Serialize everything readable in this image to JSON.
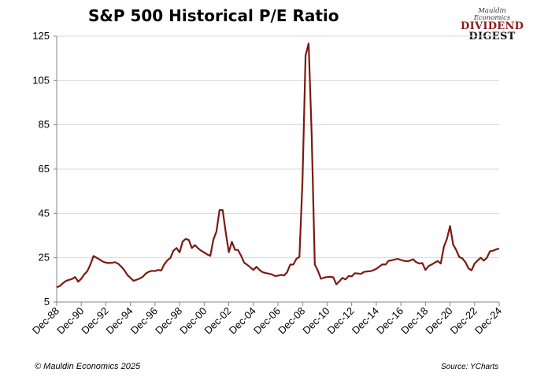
{
  "chart_data": {
    "type": "line",
    "title": "S&P 500 Historical P/E Ratio",
    "xlabel": "",
    "ylabel": "",
    "ylim": [
      5,
      125
    ],
    "y_ticks": [
      5,
      25,
      45,
      65,
      85,
      105,
      125
    ],
    "x_tick_labels": [
      "Dec-88",
      "Dec-90",
      "Dec-92",
      "Dec-94",
      "Dec-96",
      "Dec-98",
      "Dec-00",
      "Dec-02",
      "Dec-04",
      "Dec-06",
      "Dec-08",
      "Dec-10",
      "Dec-12",
      "Dec-14",
      "Dec-16",
      "Dec-18",
      "Dec-20",
      "Dec-22",
      "Dec-24"
    ],
    "grid": "horizontal",
    "line_color": "#7b1a12",
    "series": [
      {
        "points": [
          [
            "1988-12",
            11.7
          ],
          [
            "1989-03",
            12.2
          ],
          [
            "1989-06",
            13.5
          ],
          [
            "1989-09",
            14.5
          ],
          [
            "1989-12",
            15.0
          ],
          [
            "1990-03",
            15.4
          ],
          [
            "1990-06",
            16.3
          ],
          [
            "1990-09",
            14.2
          ],
          [
            "1990-12",
            15.5
          ],
          [
            "1991-03",
            17.5
          ],
          [
            "1991-06",
            19.0
          ],
          [
            "1991-09",
            22.0
          ],
          [
            "1991-12",
            25.8
          ],
          [
            "1992-03",
            25.0
          ],
          [
            "1992-06",
            24.2
          ],
          [
            "1992-09",
            23.3
          ],
          [
            "1992-12",
            22.8
          ],
          [
            "1993-03",
            22.6
          ],
          [
            "1993-06",
            22.7
          ],
          [
            "1993-09",
            23.0
          ],
          [
            "1993-12",
            22.3
          ],
          [
            "1994-03",
            21.0
          ],
          [
            "1994-06",
            19.4
          ],
          [
            "1994-09",
            17.2
          ],
          [
            "1994-12",
            15.9
          ],
          [
            "1995-03",
            14.6
          ],
          [
            "1995-06",
            15.1
          ],
          [
            "1995-09",
            15.6
          ],
          [
            "1995-12",
            16.4
          ],
          [
            "1996-03",
            17.9
          ],
          [
            "1996-06",
            18.7
          ],
          [
            "1996-09",
            19.1
          ],
          [
            "1996-12",
            19.0
          ],
          [
            "1997-03",
            19.5
          ],
          [
            "1997-06",
            19.2
          ],
          [
            "1997-09",
            22.0
          ],
          [
            "1997-12",
            23.8
          ],
          [
            "1998-03",
            24.9
          ],
          [
            "1998-06",
            28.2
          ],
          [
            "1998-09",
            29.4
          ],
          [
            "1998-12",
            27.4
          ],
          [
            "1999-03",
            32.3
          ],
          [
            "1999-06",
            33.5
          ],
          [
            "1999-09",
            33.0
          ],
          [
            "1999-12",
            29.4
          ],
          [
            "2000-03",
            30.7
          ],
          [
            "2000-06",
            29.3
          ],
          [
            "2000-09",
            28.2
          ],
          [
            "2000-12",
            27.4
          ],
          [
            "2001-03",
            26.5
          ],
          [
            "2001-06",
            25.8
          ],
          [
            "2001-09",
            33.2
          ],
          [
            "2001-12",
            36.8
          ],
          [
            "2002-03",
            46.5
          ],
          [
            "2002-06",
            46.5
          ],
          [
            "2002-09",
            36.5
          ],
          [
            "2002-12",
            27.5
          ],
          [
            "2003-03",
            32.2
          ],
          [
            "2003-06",
            28.6
          ],
          [
            "2003-09",
            28.5
          ],
          [
            "2003-12",
            25.9
          ],
          [
            "2004-03",
            22.8
          ],
          [
            "2004-06",
            21.8
          ],
          [
            "2004-09",
            20.7
          ],
          [
            "2004-12",
            19.5
          ],
          [
            "2005-03",
            20.9
          ],
          [
            "2005-06",
            19.5
          ],
          [
            "2005-09",
            18.5
          ],
          [
            "2005-12",
            18.1
          ],
          [
            "2006-03",
            17.8
          ],
          [
            "2006-06",
            17.5
          ],
          [
            "2006-09",
            16.8
          ],
          [
            "2006-12",
            16.9
          ],
          [
            "2007-03",
            17.3
          ],
          [
            "2007-06",
            17.0
          ],
          [
            "2007-09",
            18.5
          ],
          [
            "2007-12",
            21.9
          ],
          [
            "2008-03",
            21.9
          ],
          [
            "2008-06",
            24.5
          ],
          [
            "2008-09",
            25.4
          ],
          [
            "2008-12",
            60.0
          ],
          [
            "2009-03",
            116.3
          ],
          [
            "2009-06",
            121.7
          ],
          [
            "2009-09",
            80.0
          ],
          [
            "2009-12",
            21.9
          ],
          [
            "2010-03",
            19.2
          ],
          [
            "2010-06",
            15.5
          ],
          [
            "2010-09",
            16.0
          ],
          [
            "2010-12",
            16.3
          ],
          [
            "2011-03",
            16.4
          ],
          [
            "2011-06",
            16.2
          ],
          [
            "2011-09",
            13.0
          ],
          [
            "2011-12",
            14.4
          ],
          [
            "2012-03",
            15.9
          ],
          [
            "2012-06",
            15.2
          ],
          [
            "2012-09",
            16.8
          ],
          [
            "2012-12",
            16.6
          ],
          [
            "2013-03",
            18.0
          ],
          [
            "2013-06",
            17.9
          ],
          [
            "2013-09",
            17.7
          ],
          [
            "2013-12",
            18.6
          ],
          [
            "2014-03",
            18.8
          ],
          [
            "2014-06",
            18.9
          ],
          [
            "2014-09",
            19.3
          ],
          [
            "2014-12",
            20.0
          ],
          [
            "2015-03",
            21.0
          ],
          [
            "2015-06",
            22.0
          ],
          [
            "2015-09",
            21.9
          ],
          [
            "2015-12",
            23.6
          ],
          [
            "2016-03",
            23.8
          ],
          [
            "2016-06",
            24.2
          ],
          [
            "2016-09",
            24.5
          ],
          [
            "2016-12",
            24.0
          ],
          [
            "2017-03",
            23.6
          ],
          [
            "2017-06",
            23.4
          ],
          [
            "2017-09",
            23.7
          ],
          [
            "2017-12",
            24.3
          ],
          [
            "2018-03",
            23.0
          ],
          [
            "2018-06",
            22.4
          ],
          [
            "2018-09",
            22.6
          ],
          [
            "2018-12",
            19.5
          ],
          [
            "2019-03",
            21.2
          ],
          [
            "2019-06",
            21.9
          ],
          [
            "2019-09",
            22.8
          ],
          [
            "2019-12",
            23.5
          ],
          [
            "2020-03",
            22.4
          ],
          [
            "2020-06",
            30.0
          ],
          [
            "2020-09",
            33.6
          ],
          [
            "2020-12",
            39.3
          ],
          [
            "2021-03",
            31.0
          ],
          [
            "2021-06",
            28.5
          ],
          [
            "2021-09",
            25.3
          ],
          [
            "2021-12",
            24.7
          ],
          [
            "2022-03",
            23.0
          ],
          [
            "2022-06",
            20.2
          ],
          [
            "2022-09",
            19.3
          ],
          [
            "2022-12",
            22.4
          ],
          [
            "2023-03",
            23.8
          ],
          [
            "2023-06",
            25.0
          ],
          [
            "2023-09",
            23.7
          ],
          [
            "2023-12",
            25.0
          ],
          [
            "2024-03",
            27.9
          ],
          [
            "2024-06",
            28.2
          ],
          [
            "2024-09",
            28.8
          ],
          [
            "2024-12",
            29.1
          ]
        ]
      }
    ]
  },
  "logo": {
    "publisher": "Mauldin Economics",
    "line1": "DIVIDEND",
    "line2": "DIGEST"
  },
  "footer": {
    "copyright": "© Mauldin Economics 2025",
    "source": "Source: YCharts"
  }
}
